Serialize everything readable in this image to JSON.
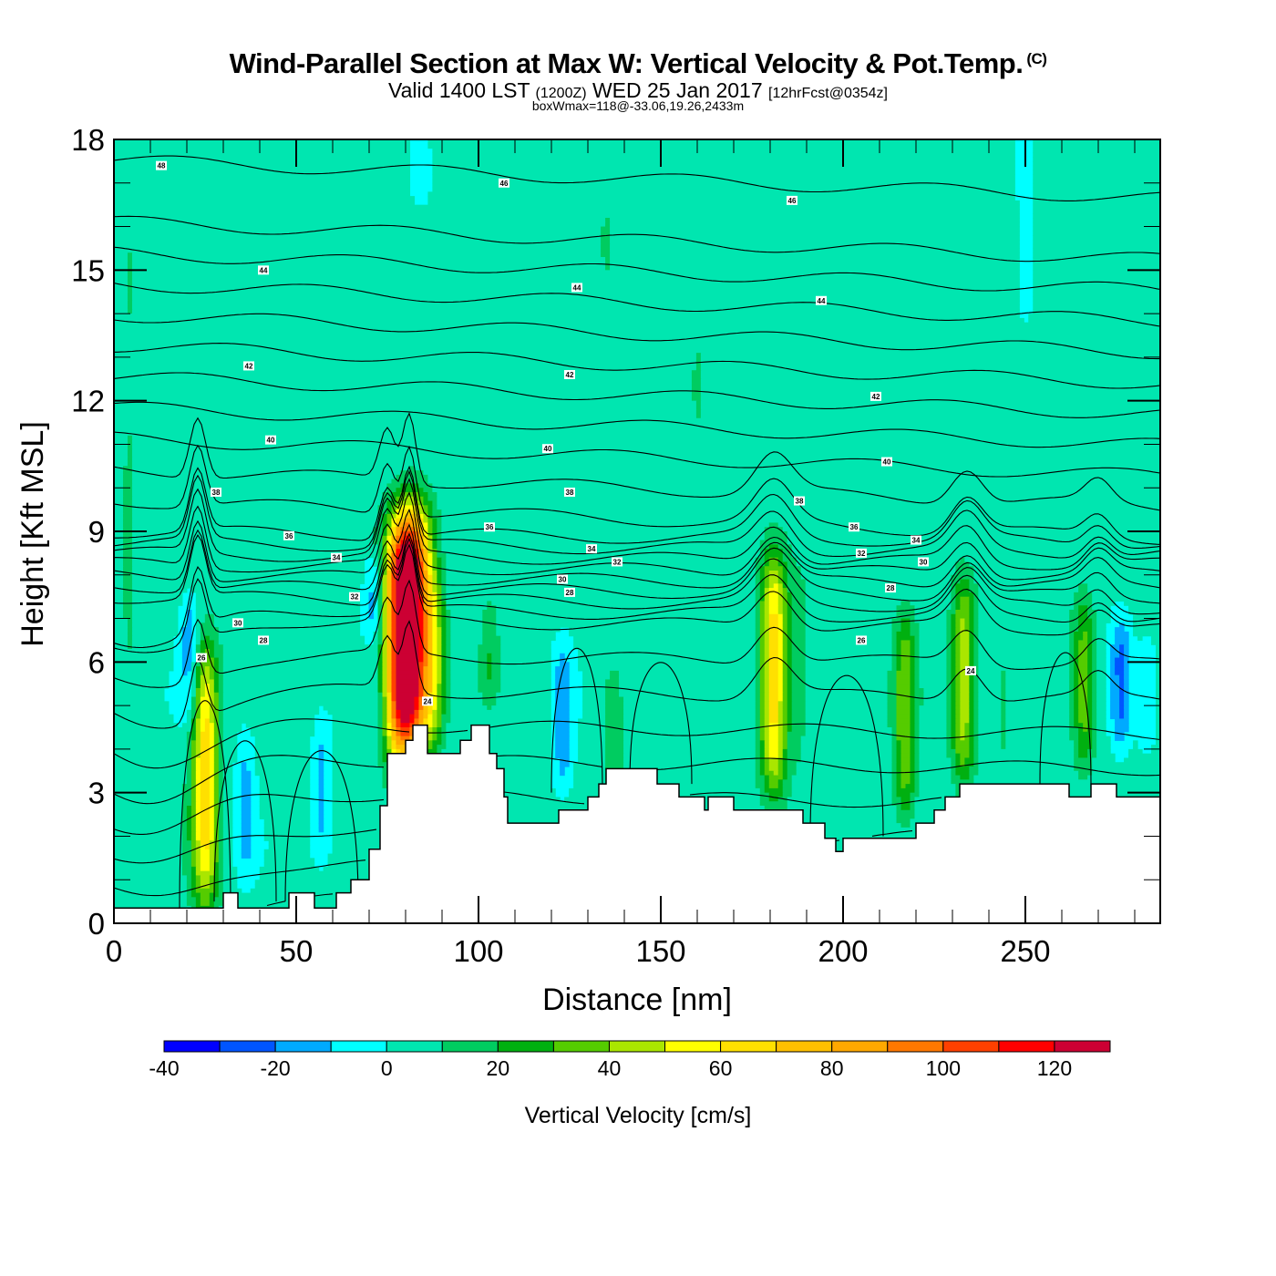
{
  "header": {
    "title": "Wind-Parallel Section at Max W: Vertical Velocity & Pot.Temp.",
    "title_mark": "(C)",
    "subtitle_valid": "Valid 1400 LST",
    "subtitle_utc": "(1200Z)",
    "subtitle_date": "WED 25 Jan 2017",
    "subtitle_fcst": "[12hrFcst@0354z]",
    "box_info": "boxWmax=118@-33.06,19.26,2433m"
  },
  "chart_data": {
    "type": "heatmap",
    "title": "Wind-Parallel Section at Max W: Vertical Velocity & Pot.Temp.",
    "xlabel": "Distance [nm]",
    "ylabel": "Height [Kft MSL]",
    "xlim": [
      0,
      287
    ],
    "ylim": [
      0,
      18
    ],
    "xticks": [
      0,
      50,
      100,
      150,
      200,
      250
    ],
    "xtick_labels": [
      "0",
      "50",
      "100",
      "150",
      "200",
      "250"
    ],
    "yticks": [
      0,
      3,
      6,
      9,
      12,
      15,
      18
    ],
    "ytick_labels": [
      "0",
      "3",
      "6",
      "9",
      "12",
      "15",
      "18"
    ],
    "x_minor_step": 10,
    "y_minor_step": 1,
    "colorbar": {
      "title": "Vertical Velocity [cm/s]",
      "levels": [
        -40,
        -30,
        -20,
        -10,
        0,
        10,
        20,
        30,
        40,
        50,
        60,
        70,
        80,
        90,
        100,
        110,
        120,
        130
      ],
      "tick_values": [
        -40,
        -20,
        0,
        20,
        40,
        60,
        80,
        100,
        120
      ],
      "tick_labels": [
        "-40",
        "-20",
        "0",
        "20",
        "40",
        "60",
        "80",
        "100",
        "120"
      ],
      "colors": [
        "#0000ff",
        "#0055ff",
        "#00aaff",
        "#00ffff",
        "#00e6b0",
        "#00cc60",
        "#00b010",
        "#55cc00",
        "#aae600",
        "#ffff00",
        "#ffe000",
        "#ffc000",
        "#ffa800",
        "#ff7800",
        "#ff4000",
        "#ff0000",
        "#cc0033"
      ]
    },
    "background_field_cm_s": 3,
    "vertical_velocity_cores": [
      {
        "x": 4,
        "z_top": 17.5,
        "z_bottom": 0.5,
        "peak": 8
      },
      {
        "x": 25,
        "z_top": 6.5,
        "z_bottom": 0.3,
        "peak": 62
      },
      {
        "x": 21,
        "z_top": 7.5,
        "z_bottom": 4.5,
        "peak": -22
      },
      {
        "x": 36,
        "z_top": 4.5,
        "z_bottom": 1.0,
        "peak": -15
      },
      {
        "x": 57,
        "z_top": 4.8,
        "z_bottom": 1.5,
        "peak": -15
      },
      {
        "x": 78,
        "z_top": 9.2,
        "z_bottom": 3.5,
        "peak": 72
      },
      {
        "x": 82,
        "z_top": 9.6,
        "z_bottom": 4.0,
        "peak": 118
      },
      {
        "x": 71,
        "z_top": 8.5,
        "z_bottom": 6.5,
        "peak": -18
      },
      {
        "x": 88,
        "z_top": 8.0,
        "z_bottom": 4.0,
        "peak": 25
      },
      {
        "x": 103,
        "z_top": 7.5,
        "z_bottom": 5.0,
        "peak": 15
      },
      {
        "x": 123,
        "z_top": 6.5,
        "z_bottom": 3.0,
        "peak": -18
      },
      {
        "x": 137,
        "z_top": 6.0,
        "z_bottom": 3.0,
        "peak": 18
      },
      {
        "x": 181,
        "z_top": 8.5,
        "z_bottom": 3.0,
        "peak": 62
      },
      {
        "x": 188,
        "z_top": 8.0,
        "z_bottom": 3.5,
        "peak": 12
      },
      {
        "x": 217,
        "z_top": 7.2,
        "z_bottom": 2.3,
        "peak": 35
      },
      {
        "x": 233,
        "z_top": 8.0,
        "z_bottom": 3.2,
        "peak": 42
      },
      {
        "x": 244,
        "z_top": 6.5,
        "z_bottom": 3.5,
        "peak": 10
      },
      {
        "x": 266,
        "z_top": 7.6,
        "z_bottom": 3.5,
        "peak": 30
      },
      {
        "x": 276,
        "z_top": 7.0,
        "z_bottom": 4.0,
        "peak": -28
      },
      {
        "x": 283,
        "z_top": 6.5,
        "z_bottom": 4.0,
        "peak": -15
      },
      {
        "x": 38,
        "z_top": 12.5,
        "z_bottom": 6.0,
        "peak": 5
      },
      {
        "x": 62,
        "z_top": 17.5,
        "z_bottom": 9.0,
        "peak": 5
      },
      {
        "x": 115,
        "z_top": 17.5,
        "z_bottom": 9.0,
        "peak": 5
      },
      {
        "x": 135,
        "z_top": 17.5,
        "z_bottom": 12.0,
        "peak": 5
      },
      {
        "x": 160,
        "z_top": 17.5,
        "z_bottom": 10.0,
        "peak": 5
      },
      {
        "x": 208,
        "z_top": 17.5,
        "z_bottom": 11.0,
        "peak": 5
      },
      {
        "x": 230,
        "z_top": 17.5,
        "z_bottom": 9.0,
        "peak": 5
      },
      {
        "x": 262,
        "z_top": 17.5,
        "z_bottom": 7.5,
        "peak": 5
      },
      {
        "x": 250,
        "z_top": 18,
        "z_bottom": 14.0,
        "peak": -12
      },
      {
        "x": 84,
        "z_top": 18,
        "z_bottom": 16.5,
        "peak": -12
      }
    ],
    "terrain": {
      "x": [
        0,
        30,
        30,
        34,
        34,
        48,
        48,
        55,
        55,
        61,
        61,
        65,
        65,
        69,
        69,
        70,
        70,
        71,
        71,
        73,
        73,
        75,
        75,
        80,
        80,
        82,
        82,
        86,
        86,
        88,
        88,
        95,
        95,
        98,
        98,
        103,
        103,
        105,
        105,
        107,
        107,
        108,
        108,
        122,
        122,
        130,
        130,
        133,
        133,
        135,
        135,
        143,
        143,
        149,
        149,
        155,
        155,
        162,
        162,
        163,
        163,
        170,
        170,
        189,
        189,
        195,
        195,
        198,
        198,
        200,
        200,
        220,
        220,
        225,
        225,
        228,
        228,
        232,
        232,
        262,
        262,
        268,
        268,
        275,
        275,
        287
      ],
      "z": [
        0.35,
        0.35,
        0.7,
        0.7,
        0.35,
        0.35,
        0.7,
        0.7,
        0.35,
        0.35,
        0.7,
        0.7,
        1.0,
        1.0,
        1.0,
        1.0,
        1.7,
        1.7,
        1.7,
        1.7,
        2.7,
        2.7,
        3.9,
        3.9,
        4.2,
        4.2,
        4.55,
        4.55,
        3.9,
        3.9,
        3.9,
        3.9,
        4.2,
        4.2,
        4.55,
        4.55,
        3.9,
        3.9,
        3.55,
        3.55,
        2.9,
        2.9,
        2.3,
        2.3,
        2.6,
        2.6,
        2.9,
        2.9,
        3.2,
        3.2,
        3.55,
        3.55,
        3.55,
        3.55,
        3.2,
        3.2,
        2.9,
        2.9,
        2.6,
        2.6,
        2.9,
        2.9,
        2.6,
        2.6,
        2.3,
        2.3,
        1.95,
        1.95,
        1.65,
        1.65,
        1.95,
        1.95,
        2.3,
        2.3,
        2.6,
        2.6,
        2.9,
        2.9,
        3.2,
        3.2,
        2.9,
        2.9,
        3.2,
        3.2,
        2.9,
        2.9
      ]
    },
    "isentrope_labels": [
      {
        "x": 13,
        "z": 17.4,
        "text": "48"
      },
      {
        "x": 107,
        "z": 17.0,
        "text": "46"
      },
      {
        "x": 186,
        "z": 16.6,
        "text": "46"
      },
      {
        "x": 41,
        "z": 15.0,
        "text": "44"
      },
      {
        "x": 127,
        "z": 14.6,
        "text": "44"
      },
      {
        "x": 194,
        "z": 14.3,
        "text": "44"
      },
      {
        "x": 37,
        "z": 12.8,
        "text": "42"
      },
      {
        "x": 125,
        "z": 12.6,
        "text": "42"
      },
      {
        "x": 209,
        "z": 12.1,
        "text": "42"
      },
      {
        "x": 43,
        "z": 11.1,
        "text": "40"
      },
      {
        "x": 119,
        "z": 10.9,
        "text": "40"
      },
      {
        "x": 212,
        "z": 10.6,
        "text": "40"
      },
      {
        "x": 28,
        "z": 9.9,
        "text": "38"
      },
      {
        "x": 125,
        "z": 9.9,
        "text": "38"
      },
      {
        "x": 188,
        "z": 9.7,
        "text": "38"
      },
      {
        "x": 48,
        "z": 8.9,
        "text": "36"
      },
      {
        "x": 103,
        "z": 9.1,
        "text": "36"
      },
      {
        "x": 203,
        "z": 9.1,
        "text": "36"
      },
      {
        "x": 61,
        "z": 8.4,
        "text": "34"
      },
      {
        "x": 131,
        "z": 8.6,
        "text": "34"
      },
      {
        "x": 220,
        "z": 8.8,
        "text": "34"
      },
      {
        "x": 66,
        "z": 7.5,
        "text": "32"
      },
      {
        "x": 138,
        "z": 8.3,
        "text": "32"
      },
      {
        "x": 205,
        "z": 8.5,
        "text": "32"
      },
      {
        "x": 34,
        "z": 6.9,
        "text": "30"
      },
      {
        "x": 123,
        "z": 7.9,
        "text": "30"
      },
      {
        "x": 222,
        "z": 8.3,
        "text": "30"
      },
      {
        "x": 41,
        "z": 6.5,
        "text": "28"
      },
      {
        "x": 125,
        "z": 7.6,
        "text": "28"
      },
      {
        "x": 213,
        "z": 7.7,
        "text": "28"
      },
      {
        "x": 24,
        "z": 6.1,
        "text": "26"
      },
      {
        "x": 205,
        "z": 6.5,
        "text": "26"
      },
      {
        "x": 86,
        "z": 5.1,
        "text": "24"
      },
      {
        "x": 235,
        "z": 5.8,
        "text": "24"
      }
    ],
    "isentrope_levels": [
      48,
      46,
      45,
      44,
      43,
      42,
      41,
      40,
      39,
      38,
      37,
      36,
      35,
      34,
      33,
      32,
      31,
      30,
      29,
      28,
      27,
      26,
      25,
      24,
      23,
      22,
      21,
      20
    ],
    "legend": "colorbar-bottom",
    "grid": false
  }
}
